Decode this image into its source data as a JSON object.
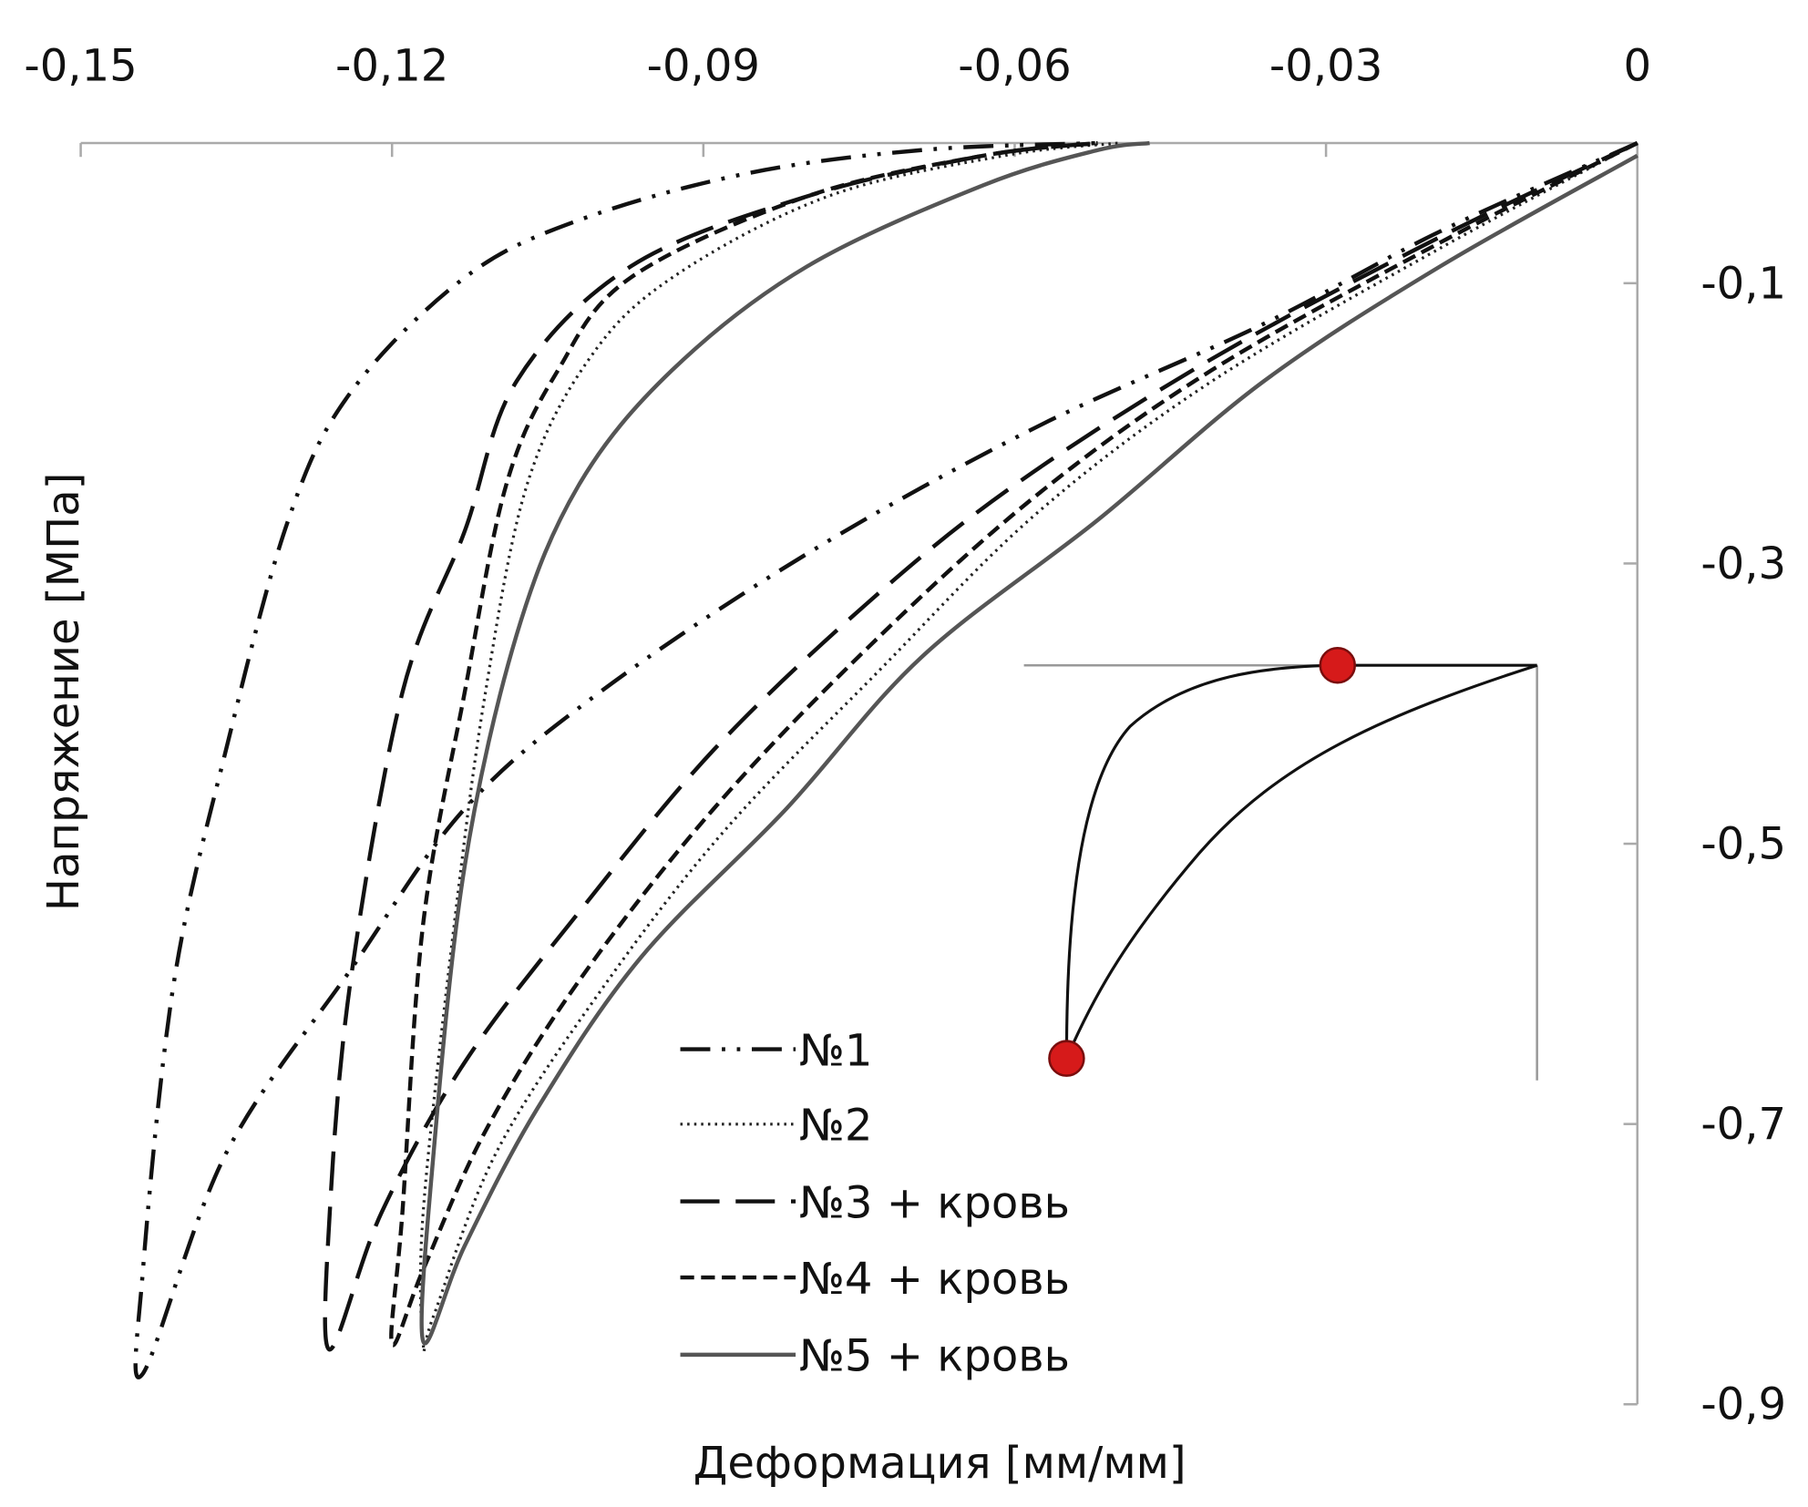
{
  "chart_data": {
    "type": "line",
    "title": "",
    "xlabel": "Деформация [мм/мм]",
    "ylabel": "Напряжение [МПа]",
    "xlim": [
      -0.15,
      0
    ],
    "ylim": [
      -0.9,
      0
    ],
    "x_ticks": [
      "-0,15",
      "-0,12",
      "-0,09",
      "-0,06",
      "-0,03",
      "0"
    ],
    "x_tick_values": [
      -0.15,
      -0.12,
      -0.09,
      -0.06,
      -0.03,
      0
    ],
    "y_ticks": [
      "-0,1",
      "-0,3",
      "-0,5",
      "-0,7",
      "-0,9"
    ],
    "y_tick_values": [
      -0.1,
      -0.3,
      -0.5,
      -0.7,
      -0.9
    ],
    "x_axis_position": "top",
    "y_axis_position": "right",
    "grid": false,
    "legend_position": "bottom-center",
    "series": [
      {
        "name": "№1",
        "style": "dash-dot-dot",
        "color": "#111111",
        "x": [
          0,
          -0.019,
          -0.036,
          -0.058,
          -0.08,
          -0.1,
          -0.113,
          -0.124,
          -0.136,
          -0.144,
          -0.144,
          -0.141,
          -0.136,
          -0.13,
          -0.124,
          -0.113,
          -0.102,
          -0.086,
          -0.069,
          -0.052
        ],
        "y": [
          0,
          -0.063,
          -0.129,
          -0.203,
          -0.293,
          -0.392,
          -0.475,
          -0.59,
          -0.721,
          -0.878,
          -0.804,
          -0.598,
          -0.433,
          -0.269,
          -0.178,
          -0.096,
          -0.055,
          -0.022,
          -0.005,
          0
        ]
      },
      {
        "name": "№2",
        "style": "dotted",
        "color": "#222222",
        "x": [
          0,
          -0.019,
          -0.041,
          -0.058,
          -0.073,
          -0.088,
          -0.1,
          -0.11,
          -0.116,
          -0.117,
          -0.117,
          -0.114,
          -0.111,
          -0.107,
          -0.101,
          -0.093,
          -0.078,
          -0.061,
          -0.05
        ],
        "y": [
          0,
          -0.075,
          -0.17,
          -0.265,
          -0.376,
          -0.491,
          -0.606,
          -0.721,
          -0.837,
          -0.857,
          -0.763,
          -0.557,
          -0.392,
          -0.244,
          -0.154,
          -0.096,
          -0.038,
          -0.009,
          0
        ]
      },
      {
        "name": "№3 + кровь",
        "style": "long-dash",
        "color": "#111111",
        "x": [
          0,
          -0.019,
          -0.041,
          -0.06,
          -0.074,
          -0.089,
          -0.102,
          -0.113,
          -0.121,
          -0.126,
          -0.126,
          -0.124,
          -0.119,
          -0.113,
          -0.108,
          -0.097,
          -0.08,
          -0.063,
          -0.052
        ],
        "y": [
          0,
          -0.067,
          -0.154,
          -0.244,
          -0.327,
          -0.433,
          -0.549,
          -0.656,
          -0.763,
          -0.861,
          -0.763,
          -0.598,
          -0.392,
          -0.277,
          -0.17,
          -0.088,
          -0.038,
          -0.009,
          0
        ]
      },
      {
        "name": "№4 + кровь",
        "style": "short-dash",
        "color": "#111111",
        "x": [
          0,
          -0.019,
          -0.041,
          -0.058,
          -0.074,
          -0.089,
          -0.102,
          -0.111,
          -0.117,
          -0.12,
          -0.119,
          -0.117,
          -0.113,
          -0.109,
          -0.104,
          -0.097,
          -0.08,
          -0.063,
          -0.052
        ],
        "y": [
          0,
          -0.071,
          -0.162,
          -0.252,
          -0.359,
          -0.475,
          -0.598,
          -0.705,
          -0.804,
          -0.857,
          -0.763,
          -0.557,
          -0.392,
          -0.244,
          -0.162,
          -0.096,
          -0.038,
          -0.009,
          0
        ]
      },
      {
        "name": "№5 + кровь",
        "style": "solid",
        "color": "#555555",
        "x": [
          0,
          -0.019,
          -0.036,
          -0.052,
          -0.069,
          -0.082,
          -0.096,
          -0.106,
          -0.113,
          -0.117,
          -0.116,
          -0.113,
          -0.108,
          -0.102,
          -0.093,
          -0.08,
          -0.063,
          -0.052,
          -0.047
        ],
        "y": [
          -0.009,
          -0.088,
          -0.17,
          -0.269,
          -0.367,
          -0.475,
          -0.581,
          -0.689,
          -0.787,
          -0.855,
          -0.721,
          -0.516,
          -0.351,
          -0.244,
          -0.162,
          -0.088,
          -0.03,
          -0.005,
          0
        ]
      }
    ],
    "inset": {
      "description_markers": 2,
      "marker_color": "#d61a1a"
    }
  }
}
